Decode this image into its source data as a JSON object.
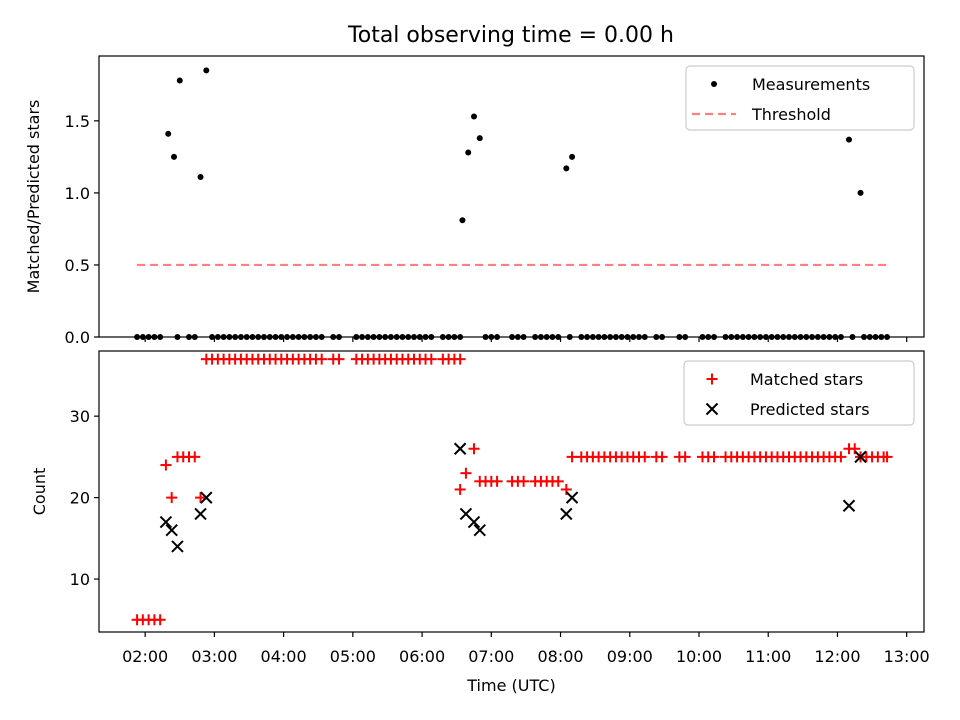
{
  "figure": {
    "title": "Total observing time = 0.00 h"
  },
  "colors": {
    "measurement": "#000000",
    "threshold": "#ff7f7f",
    "matched": "#ff0000",
    "predicted": "#000000"
  },
  "chart_data": [
    {
      "type": "scatter",
      "ylabel": "Matched/Predicted stars",
      "xlim": [
        "01:20",
        "13:15"
      ],
      "ylim": [
        0,
        1.95
      ],
      "grid": false,
      "legend_position": "upper right",
      "y_ticks": [
        {
          "value": 0,
          "label": "0.0"
        },
        {
          "value": 0.5,
          "label": "0.5"
        },
        {
          "value": 1,
          "label": "1.0"
        },
        {
          "value": 1.5,
          "label": "1.5"
        }
      ],
      "series": [
        {
          "name": "Measurements",
          "marker": "dot",
          "x": [
            "02:20",
            "02:25",
            "02:30",
            "02:48",
            "02:53",
            "06:35",
            "06:40",
            "06:45",
            "06:50",
            "08:05",
            "08:10",
            "12:10",
            "12:20",
            "01:53",
            "01:58",
            "02:03",
            "02:08",
            "02:13",
            "02:28",
            "02:38",
            "02:43",
            "02:58",
            "03:03",
            "03:08",
            "03:13",
            "03:18",
            "03:23",
            "03:28",
            "03:33",
            "03:38",
            "03:43",
            "03:48",
            "03:53",
            "03:58",
            "04:03",
            "04:08",
            "04:13",
            "04:18",
            "04:23",
            "04:28",
            "04:33",
            "04:43",
            "04:48",
            "05:03",
            "05:08",
            "05:13",
            "05:18",
            "05:23",
            "05:28",
            "05:33",
            "05:38",
            "05:43",
            "05:48",
            "05:53",
            "05:58",
            "06:03",
            "06:08",
            "06:18",
            "06:23",
            "06:28",
            "06:33",
            "06:55",
            "07:00",
            "07:05",
            "07:18",
            "07:23",
            "07:28",
            "07:38",
            "07:43",
            "07:48",
            "07:53",
            "07:58",
            "08:08",
            "08:18",
            "08:23",
            "08:28",
            "08:33",
            "08:38",
            "08:43",
            "08:48",
            "08:53",
            "08:58",
            "09:03",
            "09:08",
            "09:13",
            "09:23",
            "09:28",
            "09:43",
            "09:48",
            "10:03",
            "10:08",
            "10:13",
            "10:23",
            "10:28",
            "10:33",
            "10:38",
            "10:43",
            "10:48",
            "10:53",
            "10:58",
            "11:03",
            "11:08",
            "11:13",
            "11:18",
            "11:23",
            "11:28",
            "11:33",
            "11:38",
            "11:43",
            "11:48",
            "11:53",
            "11:58",
            "12:03",
            "12:13",
            "12:23",
            "12:28",
            "12:33",
            "12:38",
            "12:43"
          ],
          "y": [
            1.41,
            1.25,
            1.78,
            1.11,
            1.85,
            0.81,
            1.28,
            1.53,
            1.38,
            1.17,
            1.25,
            1.37,
            1.0,
            0,
            0,
            0,
            0,
            0,
            0,
            0,
            0,
            0,
            0,
            0,
            0,
            0,
            0,
            0,
            0,
            0,
            0,
            0,
            0,
            0,
            0,
            0,
            0,
            0,
            0,
            0,
            0,
            0,
            0,
            0,
            0,
            0,
            0,
            0,
            0,
            0,
            0,
            0,
            0,
            0,
            0,
            0,
            0,
            0,
            0,
            0,
            0,
            0,
            0,
            0,
            0,
            0,
            0,
            0,
            0,
            0,
            0,
            0,
            0,
            0,
            0,
            0,
            0,
            0,
            0,
            0,
            0,
            0,
            0,
            0,
            0,
            0,
            0,
            0,
            0,
            0,
            0,
            0,
            0,
            0,
            0,
            0,
            0,
            0,
            0,
            0,
            0,
            0,
            0,
            0,
            0,
            0,
            0,
            0,
            0,
            0,
            0,
            0,
            0,
            0,
            0,
            0,
            0,
            0,
            0
          ]
        },
        {
          "name": "Threshold",
          "marker": "dashed-line",
          "x": [
            "01:53",
            "12:43"
          ],
          "y": [
            0.5,
            0.5
          ]
        }
      ]
    },
    {
      "type": "scatter",
      "xlabel": "Time (UTC)",
      "ylabel": "Count",
      "xlim": [
        "01:20",
        "13:15"
      ],
      "ylim": [
        3.5,
        38
      ],
      "grid": false,
      "legend_position": "upper right",
      "x_ticks": [
        {
          "value": "02:00",
          "label": "02:00"
        },
        {
          "value": "03:00",
          "label": "03:00"
        },
        {
          "value": "04:00",
          "label": "04:00"
        },
        {
          "value": "05:00",
          "label": "05:00"
        },
        {
          "value": "06:00",
          "label": "06:00"
        },
        {
          "value": "07:00",
          "label": "07:00"
        },
        {
          "value": "08:00",
          "label": "08:00"
        },
        {
          "value": "09:00",
          "label": "09:00"
        },
        {
          "value": "10:00",
          "label": "10:00"
        },
        {
          "value": "11:00",
          "label": "11:00"
        },
        {
          "value": "12:00",
          "label": "12:00"
        },
        {
          "value": "13:00",
          "label": "13:00"
        }
      ],
      "y_ticks": [
        {
          "value": 10,
          "label": "10"
        },
        {
          "value": 20,
          "label": "20"
        },
        {
          "value": 30,
          "label": "30"
        }
      ],
      "series": [
        {
          "name": "Matched stars",
          "marker": "plus",
          "x": [
            "01:53",
            "01:58",
            "02:03",
            "02:08",
            "02:13",
            "02:18",
            "02:23",
            "02:28",
            "02:33",
            "02:38",
            "02:43",
            "02:48",
            "02:53",
            "02:58",
            "03:03",
            "03:08",
            "03:13",
            "03:18",
            "03:23",
            "03:28",
            "03:33",
            "03:38",
            "03:43",
            "03:48",
            "03:53",
            "03:58",
            "04:03",
            "04:08",
            "04:13",
            "04:18",
            "04:23",
            "04:28",
            "04:33",
            "04:43",
            "04:48",
            "05:03",
            "05:08",
            "05:13",
            "05:18",
            "05:23",
            "05:28",
            "05:33",
            "05:38",
            "05:43",
            "05:48",
            "05:53",
            "05:58",
            "06:03",
            "06:08",
            "06:18",
            "06:23",
            "06:28",
            "06:33",
            "06:33",
            "06:38",
            "06:45",
            "06:50",
            "06:55",
            "07:00",
            "07:05",
            "07:18",
            "07:23",
            "07:28",
            "07:38",
            "07:43",
            "07:48",
            "07:53",
            "07:58",
            "08:05",
            "08:10",
            "08:18",
            "08:23",
            "08:28",
            "08:33",
            "08:38",
            "08:43",
            "08:48",
            "08:53",
            "08:58",
            "09:03",
            "09:08",
            "09:13",
            "09:23",
            "09:28",
            "09:43",
            "09:48",
            "10:03",
            "10:08",
            "10:13",
            "10:23",
            "10:28",
            "10:33",
            "10:38",
            "10:43",
            "10:48",
            "10:53",
            "10:58",
            "11:03",
            "11:08",
            "11:13",
            "11:18",
            "11:23",
            "11:28",
            "11:33",
            "11:38",
            "11:43",
            "11:48",
            "11:53",
            "11:58",
            "12:03",
            "12:10",
            "12:15",
            "12:20",
            "12:25",
            "12:30",
            "12:35",
            "12:40",
            "12:43"
          ],
          "y": [
            5,
            5,
            5,
            5,
            5,
            24,
            20,
            25,
            25,
            25,
            25,
            20,
            37,
            37,
            37,
            37,
            37,
            37,
            37,
            37,
            37,
            37,
            37,
            37,
            37,
            37,
            37,
            37,
            37,
            37,
            37,
            37,
            37,
            37,
            37,
            37,
            37,
            37,
            37,
            37,
            37,
            37,
            37,
            37,
            37,
            37,
            37,
            37,
            37,
            37,
            37,
            37,
            37,
            21,
            23,
            26,
            22,
            22,
            22,
            22,
            22,
            22,
            22,
            22,
            22,
            22,
            22,
            22,
            21,
            25,
            25,
            25,
            25,
            25,
            25,
            25,
            25,
            25,
            25,
            25,
            25,
            25,
            25,
            25,
            25,
            25,
            25,
            25,
            25,
            25,
            25,
            25,
            25,
            25,
            25,
            25,
            25,
            25,
            25,
            25,
            25,
            25,
            25,
            25,
            25,
            25,
            25,
            25,
            25,
            25,
            26,
            26,
            25,
            25,
            25,
            25,
            25,
            25
          ]
        },
        {
          "name": "Predicted stars",
          "marker": "x",
          "x": [
            "02:18",
            "02:23",
            "02:28",
            "02:48",
            "02:53",
            "06:33",
            "06:38",
            "06:45",
            "06:50",
            "08:05",
            "08:10",
            "12:10",
            "12:20"
          ],
          "y": [
            17,
            16,
            14,
            18,
            20,
            26,
            18,
            17,
            16,
            18,
            20,
            19,
            25
          ]
        }
      ]
    }
  ]
}
